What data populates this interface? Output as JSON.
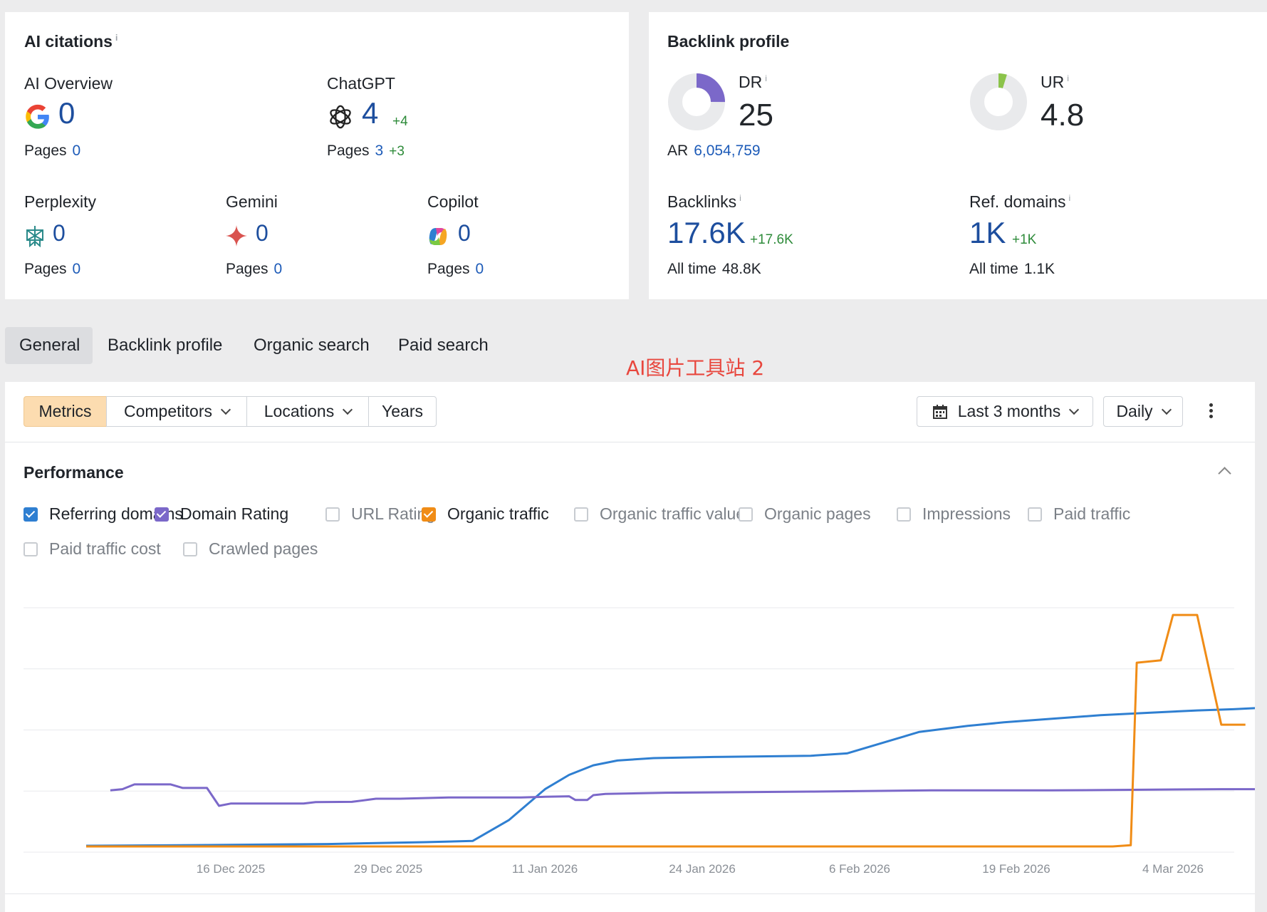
{
  "ai_citations": {
    "title": "AI citations",
    "info": "i",
    "ai_overview": {
      "label": "AI Overview",
      "value": "0",
      "pages_label": "Pages",
      "pages_value": "0"
    },
    "chatgpt": {
      "label": "ChatGPT",
      "value": "4",
      "delta": "+4",
      "pages_label": "Pages",
      "pages_value": "3",
      "pages_delta": "+3"
    },
    "perplexity": {
      "label": "Perplexity",
      "value": "0",
      "pages_label": "Pages",
      "pages_value": "0"
    },
    "gemini": {
      "label": "Gemini",
      "value": "0",
      "pages_label": "Pages",
      "pages_value": "0"
    },
    "copilot": {
      "label": "Copilot",
      "value": "0",
      "pages_label": "Pages",
      "pages_value": "0"
    }
  },
  "backlink_profile": {
    "title": "Backlink profile",
    "info": "i",
    "dr": {
      "label": "DR",
      "value": "25",
      "fraction": 0.25,
      "color": "#7b68c9"
    },
    "ar": {
      "label": "AR",
      "value": "6,054,759"
    },
    "ur": {
      "label": "UR",
      "value": "4.8",
      "fraction": 0.048,
      "color": "#8bc34a"
    },
    "backlinks": {
      "label": "Backlinks",
      "value": "17.6K",
      "delta": "+17.6K",
      "alltime_label": "All time",
      "alltime_value": "48.8K"
    },
    "ref_domains": {
      "label": "Ref. domains",
      "value": "1K",
      "delta": "+1K",
      "alltime_label": "All time",
      "alltime_value": "1.1K"
    }
  },
  "tabs": [
    {
      "label": "General",
      "active": true
    },
    {
      "label": "Backlink profile"
    },
    {
      "label": "Organic search"
    },
    {
      "label": "Paid search"
    }
  ],
  "watermark": "AI图片工具站 2",
  "toolbar": {
    "metrics": "Metrics",
    "competitors": "Competitors",
    "locations": "Locations",
    "years": "Years",
    "date_range": "Last 3 months",
    "interval": "Daily"
  },
  "performance": {
    "title": "Performance",
    "checkboxes": [
      {
        "label": "Referring domains",
        "checked": true,
        "color": "#2f7fd1"
      },
      {
        "label": "Domain Rating",
        "checked": true,
        "color": "#7b68c9"
      },
      {
        "label": "URL Rating",
        "checked": false
      },
      {
        "label": "Organic traffic",
        "checked": true,
        "color": "#f08c16"
      },
      {
        "label": "Organic traffic value",
        "checked": false
      },
      {
        "label": "Organic pages",
        "checked": false
      },
      {
        "label": "Impressions",
        "checked": false
      },
      {
        "label": "Paid traffic",
        "checked": false
      },
      {
        "label": "Paid traffic cost",
        "checked": false
      },
      {
        "label": "Crawled pages",
        "checked": false
      }
    ]
  },
  "chart_data": {
    "type": "line",
    "x_ticks": [
      "16 Dec 2025",
      "29 Dec 2025",
      "11 Jan 2026",
      "24 Jan 2026",
      "6 Feb 2026",
      "19 Feb 2026",
      "4 Mar 2026"
    ],
    "x_range_days": [
      0,
      90
    ],
    "y_range": [
      0,
      100
    ],
    "grid": true,
    "series": [
      {
        "name": "Referring domains",
        "color": "#2f7fd1",
        "points": [
          [
            0,
            0.3
          ],
          [
            10,
            0.6
          ],
          [
            20,
            1.0
          ],
          [
            28,
            1.8
          ],
          [
            32,
            2.3
          ],
          [
            35,
            11
          ],
          [
            38,
            24
          ],
          [
            40,
            30
          ],
          [
            42,
            34
          ],
          [
            44,
            36
          ],
          [
            47,
            37
          ],
          [
            52,
            37.5
          ],
          [
            60,
            38
          ],
          [
            63,
            39
          ],
          [
            67,
            45
          ],
          [
            69,
            48
          ],
          [
            73,
            50.5
          ],
          [
            76,
            52
          ],
          [
            80,
            53.5
          ],
          [
            84,
            55
          ],
          [
            88,
            56
          ],
          [
            92,
            57
          ],
          [
            95,
            57.5
          ],
          [
            97,
            58
          ],
          [
            98,
            60
          ],
          [
            100,
            63
          ],
          [
            101,
            64.5
          ]
        ]
      },
      {
        "name": "Domain Rating",
        "color": "#7b68c9",
        "points": [
          [
            2,
            23.5
          ],
          [
            3,
            24
          ],
          [
            4,
            26
          ],
          [
            7,
            26
          ],
          [
            8,
            24.5
          ],
          [
            10,
            24.5
          ],
          [
            11,
            17
          ],
          [
            12,
            18
          ],
          [
            18,
            18
          ],
          [
            19,
            18.6
          ],
          [
            22,
            18.7
          ],
          [
            24,
            20
          ],
          [
            26,
            20
          ],
          [
            30,
            20.5
          ],
          [
            36,
            20.5
          ],
          [
            38,
            20.8
          ],
          [
            40,
            21
          ],
          [
            40.5,
            19.5
          ],
          [
            41.5,
            19.5
          ],
          [
            42,
            21.5
          ],
          [
            43,
            22
          ],
          [
            48,
            22.5
          ],
          [
            60,
            23
          ],
          [
            70,
            23.5
          ],
          [
            80,
            23.5
          ],
          [
            94,
            24
          ],
          [
            97,
            24
          ]
        ]
      },
      {
        "name": "Organic traffic",
        "color": "#f08c16",
        "points": [
          [
            0,
            0
          ],
          [
            40,
            0
          ],
          [
            60,
            0
          ],
          [
            68,
            0
          ],
          [
            80,
            0
          ],
          [
            85,
            0
          ],
          [
            86.5,
            0.5
          ],
          [
            87,
            77
          ],
          [
            89,
            78
          ],
          [
            90,
            97
          ],
          [
            92,
            97
          ],
          [
            94,
            51
          ],
          [
            96,
            51
          ]
        ]
      }
    ]
  }
}
